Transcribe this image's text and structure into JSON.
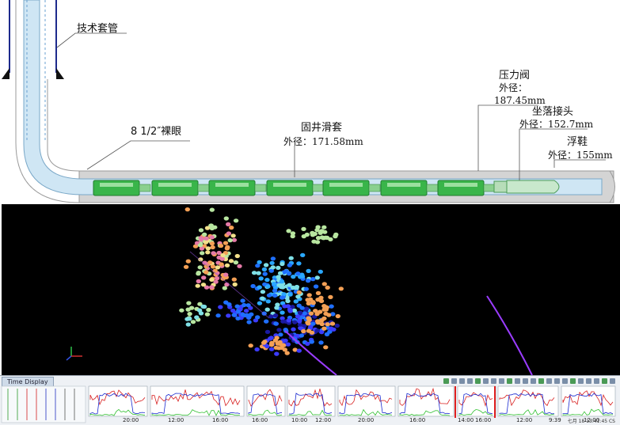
{
  "diagram": {
    "labels": {
      "casing": "技术套管",
      "openhole": "8 1/2″裸眼",
      "sleeve_name": "固井滑套",
      "sleeve_od": "外径：171.58mm",
      "valve_name": "压力阀",
      "valve_od_label": "外径：",
      "valve_od_value": "187.45mm",
      "landing_name": "坐落接头",
      "landing_od": "外径：152.7mm",
      "shoe_name": "浮鞋",
      "shoe_od": "外径：155mm"
    },
    "colors": {
      "casing": "#1d2a8c",
      "tubing_fill": "#cfe6f4",
      "packer": "#39b54a",
      "wellbore_gray": "#bfbfbf"
    }
  },
  "microseismic": {
    "background": "#000000",
    "wellpath_color": "#9a3cff",
    "palette": [
      "#3b3bff",
      "#1f6fff",
      "#2aa8ff",
      "#7fe0e6",
      "#b8e6a0",
      "#f2e08a",
      "#f4a055",
      "#e67aa8",
      "#1a1aa0"
    ]
  },
  "time_display": {
    "title": "Time Display",
    "ticks": [
      "20:00",
      "12:00",
      "16:00",
      "16:00",
      "10:00",
      "12:00",
      "20:00",
      "16:00",
      "14:00",
      "16:00",
      "12:00",
      "9:39",
      "12:00"
    ],
    "status": "七月 18 13:41:45 CS"
  }
}
